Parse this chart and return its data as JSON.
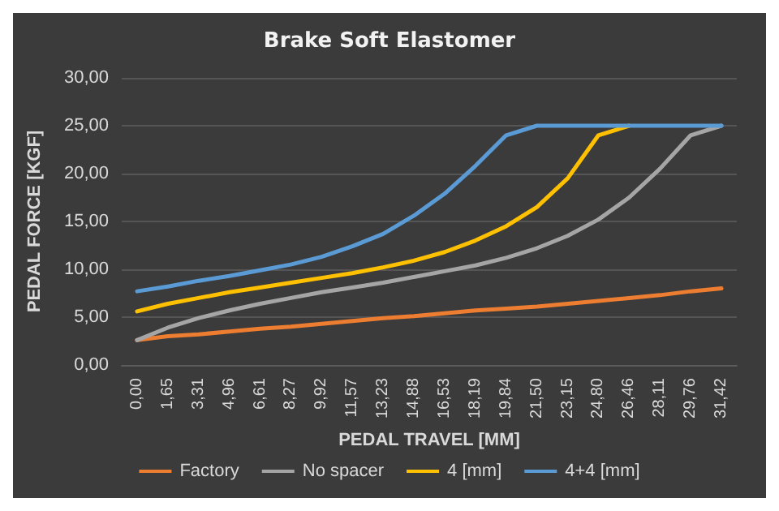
{
  "chart_data": {
    "type": "line",
    "title": "Brake Soft Elastomer",
    "xlabel": "PEDAL TRAVEL [MM]",
    "ylabel": "PEDAL FORCE [KGF]",
    "categories": [
      "0,00",
      "1,65",
      "3,31",
      "4,96",
      "6,61",
      "8,27",
      "9,92",
      "11,57",
      "13,23",
      "14,88",
      "16,53",
      "18,19",
      "19,84",
      "21,50",
      "23,15",
      "24,80",
      "26,46",
      "28,11",
      "29,76",
      "31,42"
    ],
    "series": [
      {
        "name": "Factory",
        "color": "#ed7d31",
        "values": [
          2.6,
          3.0,
          3.2,
          3.5,
          3.8,
          4.0,
          4.3,
          4.6,
          4.9,
          5.1,
          5.4,
          5.7,
          5.9,
          6.1,
          6.4,
          6.7,
          7.0,
          7.3,
          7.7,
          8.0
        ]
      },
      {
        "name": "No spacer",
        "color": "#a5a5a5",
        "values": [
          2.6,
          3.9,
          4.9,
          5.7,
          6.4,
          7.0,
          7.6,
          8.1,
          8.6,
          9.2,
          9.8,
          10.4,
          11.2,
          12.2,
          13.5,
          15.2,
          17.5,
          20.5,
          24.0,
          25.0
        ]
      },
      {
        "name": "4 [mm]",
        "color": "#ffc000",
        "values": [
          5.6,
          6.4,
          7.0,
          7.6,
          8.1,
          8.6,
          9.1,
          9.6,
          10.2,
          10.9,
          11.8,
          13.0,
          14.5,
          16.5,
          19.5,
          24.0,
          25.0,
          null,
          null,
          null
        ]
      },
      {
        "name": "4+4 [mm]",
        "color": "#5b9bd5",
        "values": [
          7.7,
          8.2,
          8.8,
          9.3,
          9.9,
          10.5,
          11.3,
          12.4,
          13.7,
          15.6,
          17.9,
          20.8,
          24.0,
          25.0,
          25.0,
          25.0,
          25.0,
          25.0,
          25.0,
          25.0
        ]
      }
    ],
    "ylim": [
      0,
      30
    ],
    "yticks": [
      {
        "value": 0,
        "label": "0,00"
      },
      {
        "value": 5,
        "label": "5,00"
      },
      {
        "value": 10,
        "label": "10,00"
      },
      {
        "value": 15,
        "label": "15,00"
      },
      {
        "value": 20,
        "label": "20,00"
      },
      {
        "value": 25,
        "label": "25,00"
      },
      {
        "value": 30,
        "label": "30,00"
      }
    ],
    "grid": "y",
    "legend": "bottom",
    "marker": "none",
    "line_style": "solid"
  }
}
